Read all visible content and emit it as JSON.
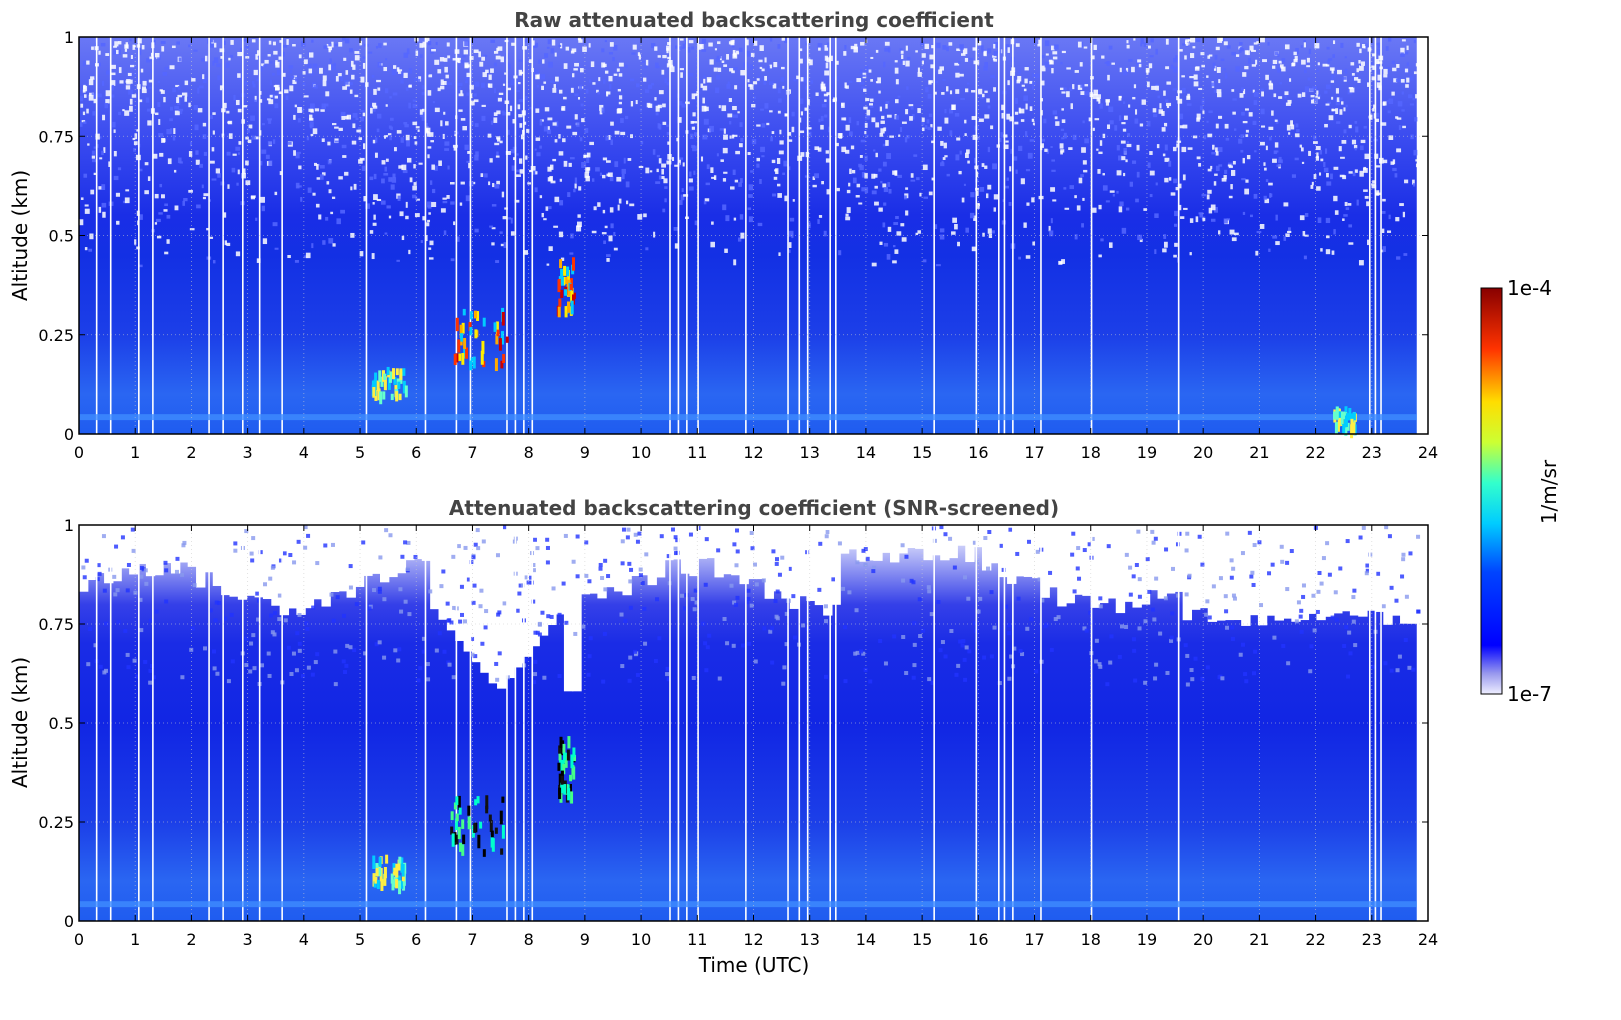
{
  "chart_data": [
    {
      "type": "heatmap",
      "title": "Raw attenuated backscattering coefficient",
      "xlabel": "",
      "ylabel": "Altitude (km)",
      "xlim": [
        0,
        24
      ],
      "ylim": [
        0,
        1
      ],
      "xticks": [
        "0",
        "1",
        "2",
        "3",
        "4",
        "5",
        "6",
        "7",
        "8",
        "9",
        "10",
        "11",
        "12",
        "13",
        "14",
        "15",
        "16",
        "17",
        "18",
        "19",
        "20",
        "21",
        "22",
        "23",
        "24"
      ],
      "yticks": [
        "0",
        "0.25",
        "0.5",
        "0.75",
        "1"
      ],
      "grid": true,
      "features": [
        {
          "t0": 6.6,
          "t1": 7.6,
          "z0": 0.18,
          "z1": 0.32,
          "level": "high"
        },
        {
          "t0": 8.5,
          "t1": 8.8,
          "z0": 0.32,
          "z1": 0.45,
          "level": "high"
        },
        {
          "t0": 5.2,
          "t1": 5.8,
          "z0": 0.1,
          "z1": 0.17,
          "level": "medium"
        },
        {
          "t0": 22.3,
          "t1": 22.7,
          "z0": 0.02,
          "z1": 0.07,
          "level": "medium"
        }
      ]
    },
    {
      "type": "heatmap",
      "title": "Attenuated backscattering coefficient (SNR-screened)",
      "xlabel": "Time (UTC)",
      "ylabel": "Altitude (km)",
      "xlim": [
        0,
        24
      ],
      "ylim": [
        0,
        1
      ],
      "xticks": [
        "0",
        "1",
        "2",
        "3",
        "4",
        "5",
        "6",
        "7",
        "8",
        "9",
        "10",
        "11",
        "12",
        "13",
        "14",
        "15",
        "16",
        "17",
        "18",
        "19",
        "20",
        "21",
        "22",
        "23",
        "24"
      ],
      "yticks": [
        "0",
        "0.25",
        "0.5",
        "0.75",
        "1"
      ],
      "grid": true,
      "features": [
        {
          "t0": 6.6,
          "t1": 7.6,
          "z0": 0.18,
          "z1": 0.32,
          "level": "saturated"
        },
        {
          "t0": 8.5,
          "t1": 8.8,
          "z0": 0.32,
          "z1": 0.47,
          "level": "saturated"
        },
        {
          "t0": 5.2,
          "t1": 5.8,
          "z0": 0.1,
          "z1": 0.17,
          "level": "medium"
        }
      ]
    }
  ],
  "colorbar": {
    "label": "1/m/sr",
    "max_label": "1e-4",
    "min_label": "1e-7",
    "scale": "log",
    "colormap": "jet"
  },
  "colors": {
    "title": "#444444",
    "background_blue": "#1a33e6"
  }
}
